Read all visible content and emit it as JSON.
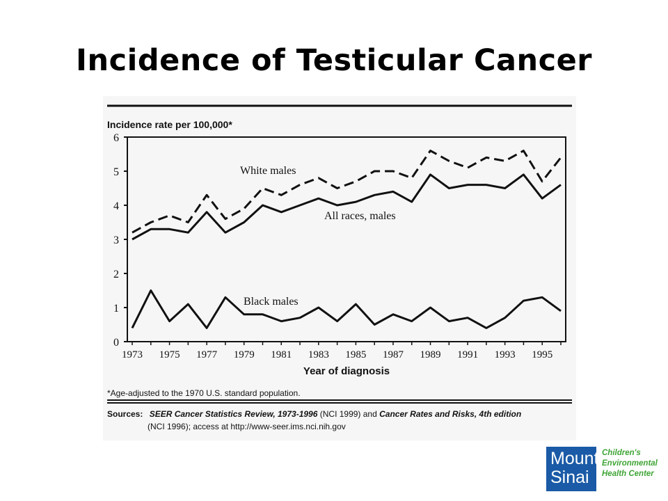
{
  "slide": {
    "title": "Incidence of Testicular Cancer"
  },
  "chart_data": {
    "type": "line",
    "ylabel": "Incidence rate per 100,000*",
    "xlabel": "Year of diagnosis",
    "ylim": [
      0,
      6
    ],
    "yticks": [
      "0",
      "1",
      "2",
      "3",
      "4",
      "5",
      "6"
    ],
    "x": [
      1973,
      1974,
      1975,
      1976,
      1977,
      1978,
      1979,
      1980,
      1981,
      1982,
      1983,
      1984,
      1985,
      1986,
      1987,
      1988,
      1989,
      1990,
      1991,
      1992,
      1993,
      1994,
      1995,
      1996
    ],
    "xticks": [
      "1973",
      "1975",
      "1977",
      "1979",
      "1981",
      "1983",
      "1985",
      "1987",
      "1989",
      "1991",
      "1993",
      "1995"
    ],
    "series": [
      {
        "name": "White males",
        "style": "dashed",
        "values": [
          3.2,
          3.5,
          3.7,
          3.5,
          4.3,
          3.6,
          3.9,
          4.5,
          4.3,
          4.6,
          4.8,
          4.5,
          4.7,
          5.0,
          5.0,
          4.8,
          5.6,
          5.3,
          5.1,
          5.4,
          5.3,
          5.6,
          4.7,
          5.4
        ]
      },
      {
        "name": "All races, males",
        "style": "solid",
        "values": [
          3.0,
          3.3,
          3.3,
          3.2,
          3.8,
          3.2,
          3.5,
          4.0,
          3.8,
          4.0,
          4.2,
          4.0,
          4.1,
          4.3,
          4.4,
          4.1,
          4.9,
          4.5,
          4.6,
          4.6,
          4.5,
          4.9,
          4.2,
          4.6
        ]
      },
      {
        "name": "Black males",
        "style": "solid",
        "values": [
          0.4,
          1.5,
          0.6,
          1.1,
          0.4,
          1.3,
          0.8,
          0.8,
          0.6,
          0.7,
          1.0,
          0.6,
          1.1,
          0.5,
          0.8,
          0.6,
          1.0,
          0.6,
          0.7,
          0.4,
          0.7,
          1.2,
          1.3,
          0.9
        ]
      }
    ],
    "footnote": "*Age-adjusted to the 1970 U.S. standard population.",
    "sources": {
      "label": "Sources:",
      "line1_a": "SEER Cancer Statistics Review, 1973-1996",
      "line1_b": " (NCI 1999) and ",
      "line1_c": "Cancer Rates and Risks, 4th edition",
      "line2": "(NCI 1996); access at http://www-seer.ims.nci.nih.gov"
    }
  },
  "logo": {
    "line1": "Mount",
    "line2": "Sinai",
    "text1": "Children's",
    "text2": "Environmental",
    "text3": "Health Center",
    "box_color": "#1a5aa6",
    "text_color": "#3fa535"
  }
}
